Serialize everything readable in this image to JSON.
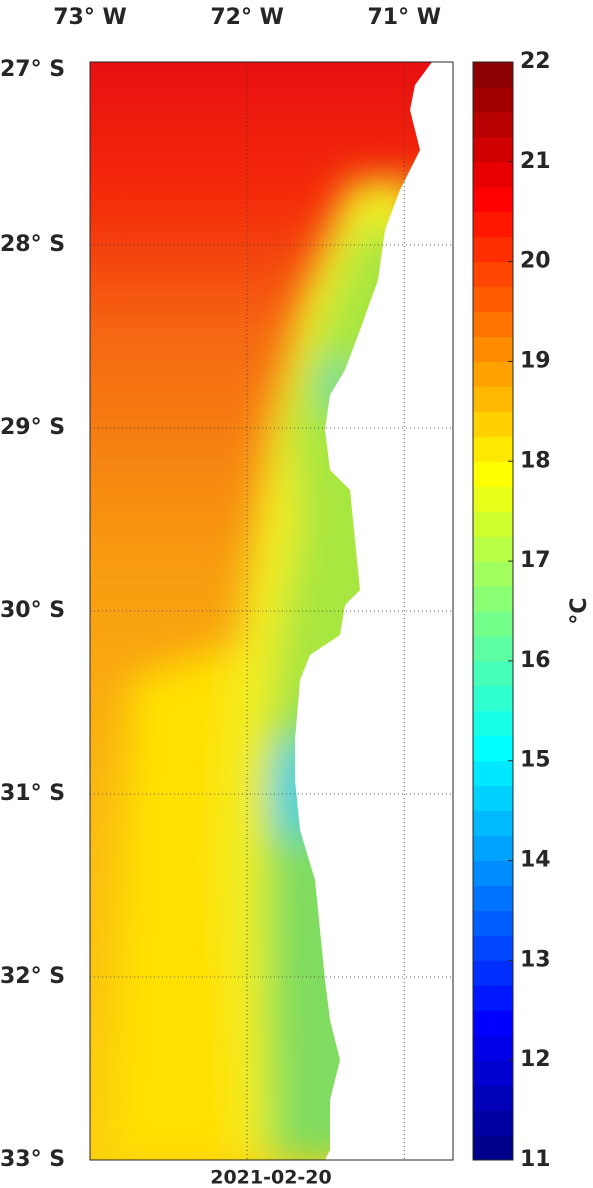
{
  "map": {
    "date": "2021-02-20",
    "lonlim": [
      -73,
      -70.69
    ],
    "latlim": [
      -27,
      -33
    ],
    "lon_ticks": [
      {
        "value": -73,
        "label": "73° W"
      },
      {
        "value": -72,
        "label": "72° W"
      },
      {
        "value": -71,
        "label": "71° W"
      }
    ],
    "lat_ticks": [
      {
        "value": -27,
        "label": "27° S"
      },
      {
        "value": -28,
        "label": "28° S"
      },
      {
        "value": -29,
        "label": "29° S"
      },
      {
        "value": -30,
        "label": "30° S"
      },
      {
        "value": -31,
        "label": "31° S"
      },
      {
        "value": -32,
        "label": "32° S"
      },
      {
        "value": -33,
        "label": "33° S"
      }
    ],
    "grid": true,
    "colorbar": {
      "label": "°C",
      "lim": [
        11,
        22
      ],
      "ticks": [
        11,
        12,
        13,
        14,
        15,
        16,
        17,
        18,
        19,
        20,
        21,
        22
      ],
      "colormap": "jet"
    }
  }
}
